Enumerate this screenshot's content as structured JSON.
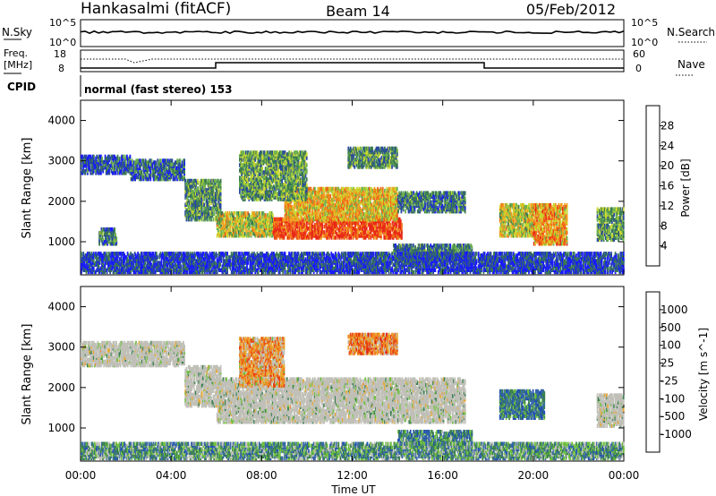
{
  "header": {
    "station": "Hankasalmi (fitACF)",
    "beam": "Beam 14",
    "date": "05/Feb/2012"
  },
  "noise_panel": {
    "left_label": "N.Sky",
    "left_ticks": [
      "10^5",
      "10^0"
    ],
    "right_label": "N.Search",
    "right_ticks": [
      "10^5",
      "10^0"
    ]
  },
  "freq_panel": {
    "left_label_1": "Freq.",
    "left_label_2": "[MHz]",
    "left_ticks": [
      "18",
      "8"
    ],
    "right_label": "Nave",
    "right_ticks": [
      "60",
      "0"
    ]
  },
  "cpid": {
    "label": "CPID",
    "text": "normal (fast stereo) 153"
  },
  "colors": {
    "scatter_scale": [
      "#2a58a6",
      "#3a7d44",
      "#7ab85a",
      "#b8c828",
      "#f4a020",
      "#f07020",
      "#e83020"
    ],
    "velocity_scale": [
      "#2457a8",
      "#3a6aa8",
      "#3f7d50",
      "#6dc24a",
      "#c8c8c0",
      "#e8a030",
      "#f07a20",
      "#e83a1a",
      "#dd1a10"
    ],
    "ground_scatter": "#c0c0b8"
  },
  "chart_data": [
    {
      "type": "heatmap",
      "title": "Power",
      "ylabel": "Slant Range [km]",
      "y_ticks": [
        "1000",
        "2000",
        "3000",
        "4000"
      ],
      "ylim": [
        180,
        4500
      ],
      "x_ticks": [
        "00:00",
        "04:00",
        "08:00",
        "12:00",
        "16:00",
        "20:00",
        "00:00"
      ],
      "xlim_hours": [
        0,
        24
      ],
      "colorbar": {
        "label": "Power [dB]",
        "ticks": [
          "4",
          "8",
          "12",
          "16",
          "20",
          "24",
          "28"
        ],
        "colors": [
          "#1a1aff",
          "#2a4aa0",
          "#3a7a50",
          "#6cb050",
          "#c8d830",
          "#f0a020",
          "#f06818",
          "#e82818"
        ]
      },
      "regions": [
        {
          "t0": 0.0,
          "t1": 2.2,
          "r0": 2650,
          "r1": 3100,
          "level": 0.2
        },
        {
          "t0": 2.2,
          "t1": 4.6,
          "r0": 2500,
          "r1": 3000,
          "level": 0.25
        },
        {
          "t0": 4.6,
          "t1": 6.2,
          "r0": 1500,
          "r1": 2500,
          "level": 0.35
        },
        {
          "t0": 6.0,
          "t1": 8.5,
          "r0": 1100,
          "r1": 1700,
          "level": 0.55
        },
        {
          "t0": 8.5,
          "t1": 14.2,
          "r0": 1050,
          "r1": 1550,
          "level": 0.9
        },
        {
          "t0": 9.0,
          "t1": 14.0,
          "r0": 1500,
          "r1": 2300,
          "level": 0.65
        },
        {
          "t0": 7.0,
          "t1": 10.0,
          "r0": 2000,
          "r1": 3200,
          "level": 0.4
        },
        {
          "t0": 11.8,
          "t1": 14.0,
          "r0": 2800,
          "r1": 3300,
          "level": 0.35
        },
        {
          "t0": 14.0,
          "t1": 17.0,
          "r0": 1700,
          "r1": 2200,
          "level": 0.3
        },
        {
          "t0": 13.8,
          "t1": 17.3,
          "r0": 500,
          "r1": 900,
          "level": 0.3
        },
        {
          "t0": 18.5,
          "t1": 20.0,
          "r0": 1100,
          "r1": 1900,
          "level": 0.55
        },
        {
          "t0": 20.0,
          "t1": 21.5,
          "r0": 900,
          "r1": 1900,
          "level": 0.7
        },
        {
          "t0": 22.8,
          "t1": 24.0,
          "r0": 1000,
          "r1": 1800,
          "level": 0.4
        },
        {
          "t0": 0.8,
          "t1": 1.6,
          "r0": 900,
          "r1": 1300,
          "level": 0.3
        },
        {
          "t0": 0.0,
          "t1": 24.0,
          "r0": 200,
          "r1": 700,
          "level": 0.15
        }
      ]
    },
    {
      "type": "heatmap",
      "title": "Velocity",
      "ylabel": "Slant Range [km]",
      "y_ticks": [
        "1000",
        "2000",
        "3000",
        "4000"
      ],
      "ylim": [
        180,
        4500
      ],
      "x_ticks": [
        "00:00",
        "04:00",
        "08:00",
        "12:00",
        "16:00",
        "20:00",
        "00:00"
      ],
      "xlim_hours": [
        0,
        24
      ],
      "xlabel": "Time UT",
      "colorbar": {
        "label": "Velocity [m s^-1]",
        "ticks": [
          "1000",
          "500",
          "100",
          "25",
          "-25",
          "-100",
          "-500",
          "-1000"
        ],
        "colors": [
          "#2050b0",
          "#3a6aa8",
          "#3a8050",
          "#70c040",
          "#c0c0b8",
          "#e8a830",
          "#f08020",
          "#e84010",
          "#e01010"
        ]
      },
      "regions": [
        {
          "t0": 0.0,
          "t1": 4.6,
          "r0": 2500,
          "r1": 3100,
          "level": 0.45
        },
        {
          "t0": 4.6,
          "t1": 6.2,
          "r0": 1500,
          "r1": 2500,
          "level": 0.45
        },
        {
          "t0": 6.0,
          "t1": 17.0,
          "r0": 1100,
          "r1": 2200,
          "level": 0.45
        },
        {
          "t0": 7.0,
          "t1": 9.0,
          "r0": 2000,
          "r1": 3200,
          "level": 0.65
        },
        {
          "t0": 11.8,
          "t1": 14.0,
          "r0": 2800,
          "r1": 3300,
          "level": 0.7
        },
        {
          "t0": 14.0,
          "t1": 17.3,
          "r0": 500,
          "r1": 900,
          "level": 0.25
        },
        {
          "t0": 18.5,
          "t1": 20.5,
          "r0": 1200,
          "r1": 1900,
          "level": 0.2
        },
        {
          "t0": 22.8,
          "t1": 24.0,
          "r0": 1000,
          "r1": 1800,
          "level": 0.45
        },
        {
          "t0": 0.0,
          "t1": 24.0,
          "r0": 200,
          "r1": 600,
          "level": 0.3
        }
      ]
    }
  ]
}
